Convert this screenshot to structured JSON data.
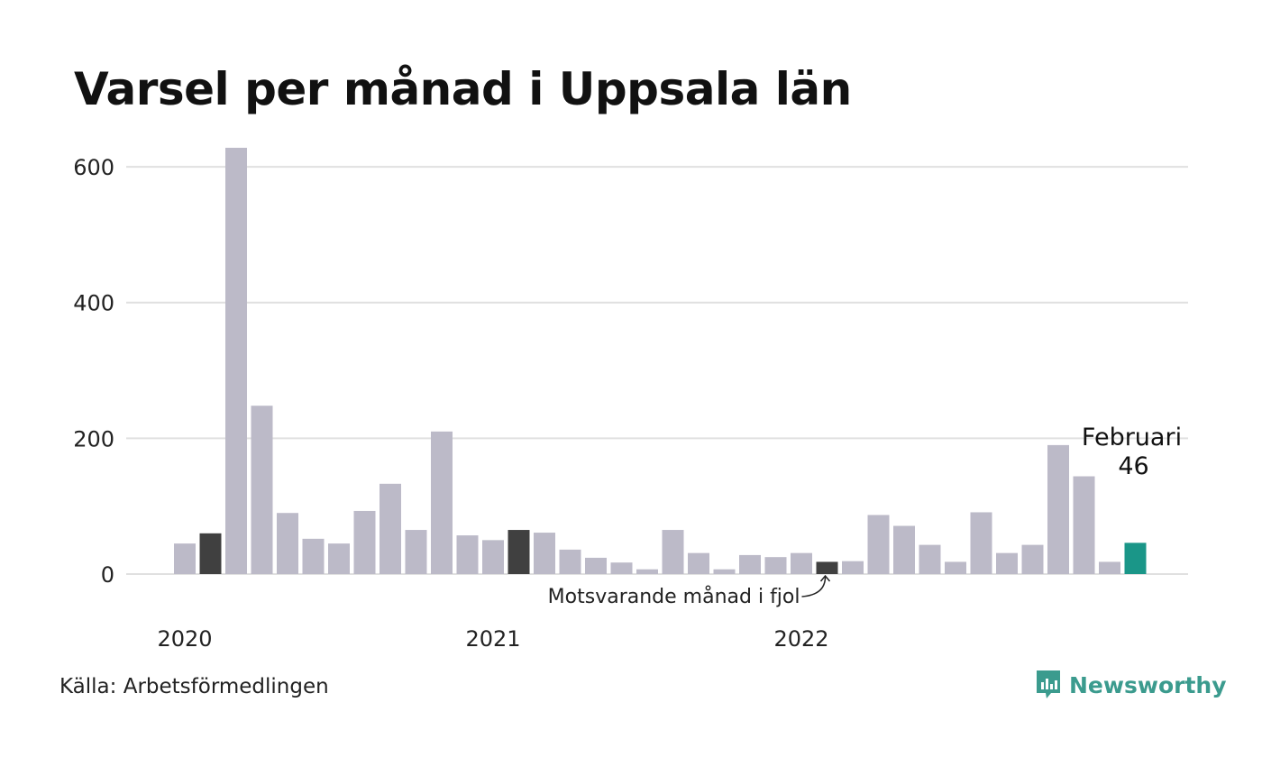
{
  "title": "Varsel per månad i Uppsala län",
  "source": "Källa: Arbetsförmedlingen",
  "brand": {
    "name": "Newsworthy",
    "icon": "newsworthy-logo-icon"
  },
  "colors": {
    "bar": "#bcbac8",
    "comparison": "#404040",
    "highlight": "#1a9688",
    "grid": "#e0e0e0",
    "brand": "#3b9b8e"
  },
  "chart_data": {
    "type": "bar",
    "title": "Varsel per månad i Uppsala län",
    "xlabel": "",
    "ylabel": "",
    "ylim": [
      0,
      620
    ],
    "yticks": [
      0,
      200,
      400,
      600
    ],
    "grid": true,
    "year_labels": [
      {
        "label": "2020",
        "index": 0
      },
      {
        "label": "2021",
        "index": 12
      },
      {
        "label": "2022",
        "index": 24
      }
    ],
    "categories": [
      "2020-01",
      "2020-02",
      "2020-03",
      "2020-04",
      "2020-05",
      "2020-06",
      "2020-07",
      "2020-08",
      "2020-09",
      "2020-10",
      "2020-11",
      "2020-12",
      "2021-01",
      "2021-02",
      "2021-03",
      "2021-04",
      "2021-05",
      "2021-06",
      "2021-07",
      "2021-08",
      "2021-09",
      "2021-10",
      "2021-11",
      "2021-12",
      "2022-01",
      "2022-02",
      "2022-03",
      "2022-04",
      "2022-05",
      "2022-06",
      "2022-07",
      "2022-08",
      "2022-09",
      "2022-10",
      "2022-11",
      "2022-12",
      "2023-01",
      "2023-02"
    ],
    "values": [
      45,
      60,
      628,
      248,
      90,
      52,
      45,
      93,
      133,
      65,
      210,
      57,
      50,
      65,
      61,
      36,
      24,
      17,
      7,
      65,
      31,
      7,
      28,
      25,
      31,
      18,
      19,
      87,
      71,
      43,
      18,
      91,
      31,
      43,
      190,
      144,
      18,
      46
    ],
    "comparison_indices": [
      1,
      13,
      25
    ],
    "highlight_index": 37,
    "annotations": {
      "comparison": "Motsvarande månad i fjol",
      "highlight_month": "Februari",
      "highlight_value": "46"
    }
  }
}
